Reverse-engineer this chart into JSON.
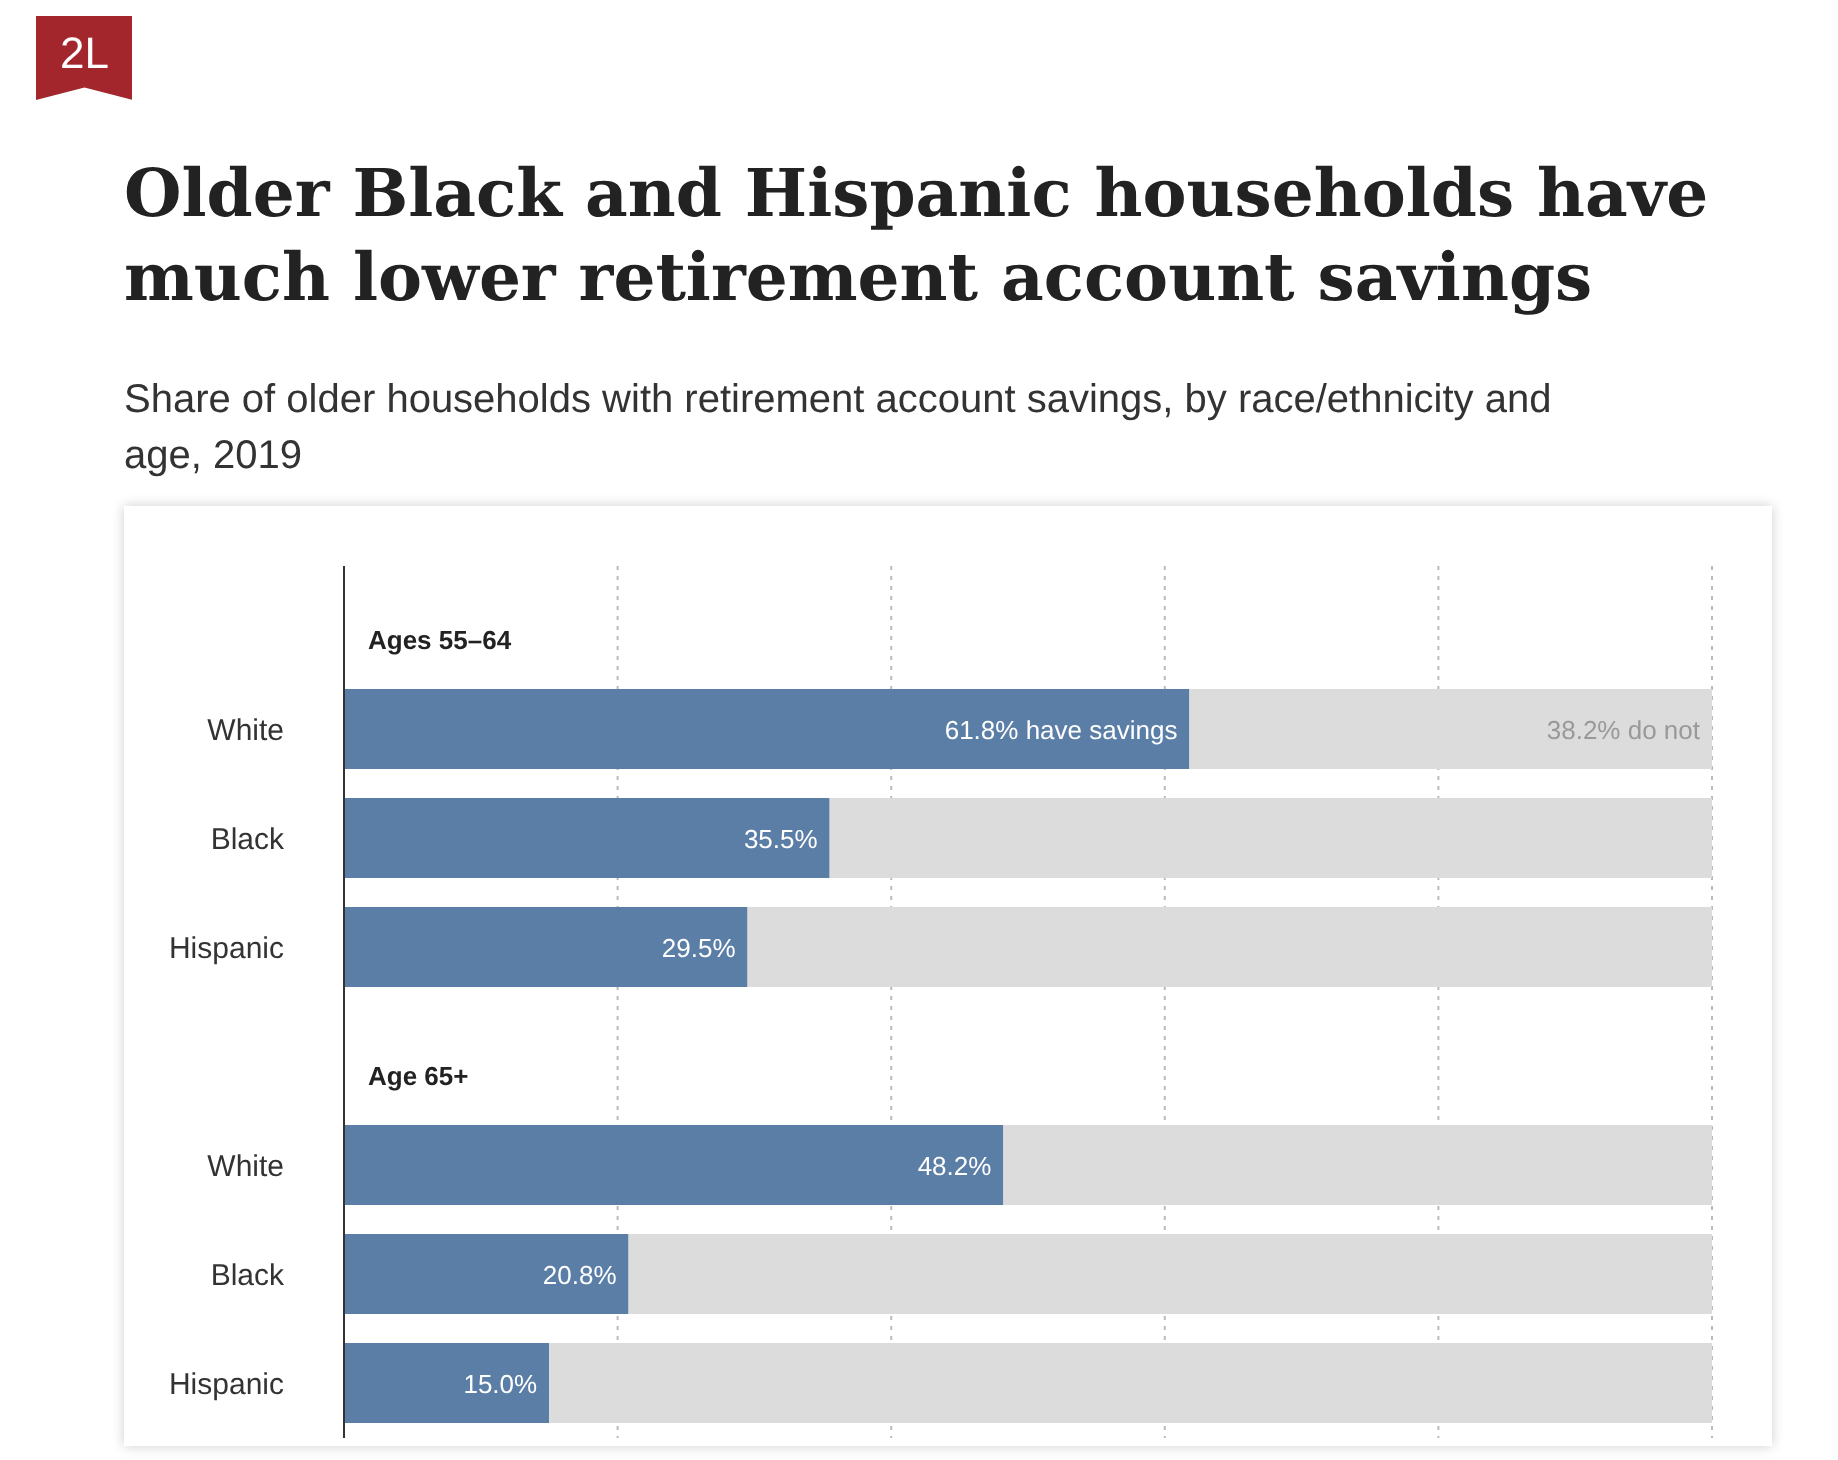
{
  "chart_data": {
    "type": "bar",
    "orientation": "horizontal",
    "stacked": true,
    "title": "Older Black and Hispanic households have much lower retirement account savings",
    "subtitle": "Share of older households with retirement account savings, by race/ethnicity and age, 2019",
    "annotations": [
      "2L",
      "Ages 55–64",
      "Age 65+"
    ],
    "categories": [
      null,
      "White",
      "Black",
      "Hispanic",
      null,
      "White",
      "Black",
      "Hispanic"
    ],
    "series": [
      {
        "color": "#5b7ea6",
        "values": [
          null,
          61.8,
          35.5,
          29.5,
          null,
          48.2,
          20.8,
          15.0
        ],
        "value_labels": [
          null,
          "61.8% have savings",
          "35.5%",
          "29.5%",
          null,
          "48.2%",
          "20.8%",
          "15.0%"
        ]
      },
      {
        "color": "#dcdcdc",
        "values": [
          null,
          38.2,
          64.5,
          70.5,
          null,
          51.8,
          79.2,
          85.0
        ],
        "value_labels": [
          null,
          "38.2% do not",
          null,
          null,
          null,
          null,
          null,
          null
        ]
      }
    ],
    "grid": "x",
    "tick_labels": "y"
  }
}
